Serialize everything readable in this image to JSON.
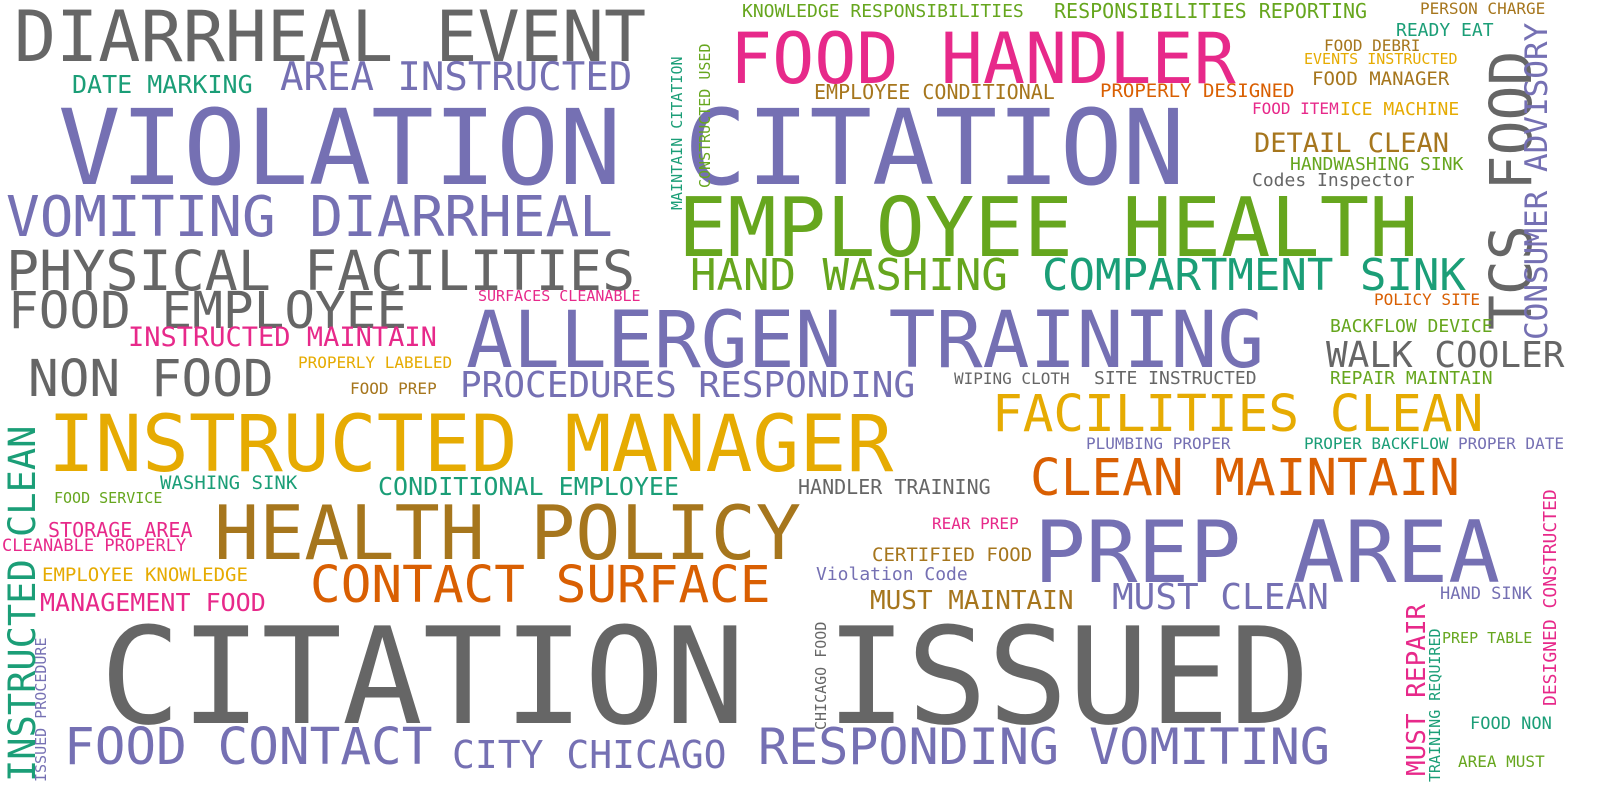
{
  "palette": {
    "gray": "#666666",
    "purple": "#7570b3",
    "pink": "#e7298a",
    "green": "#66a61e",
    "teal": "#1b9e77",
    "orange": "#d95f02",
    "gold": "#e6ab02",
    "brown": "#a6761d"
  },
  "words": [
    "DIARRHEAL EVENT",
    "VIOLATION CITATION",
    "CITATION ISSUED",
    "FOOD HANDLER",
    "EMPLOYEE HEALTH",
    "ALLERGEN TRAINING",
    "INSTRUCTED MANAGER",
    "PREP AREA",
    "HEALTH POLICY",
    "VOMITING DIARRHEAL",
    "PHYSICAL FACILITIES",
    "FOOD EMPLOYEE",
    "NON FOOD",
    "FOOD CONTACT",
    "RESPONDING VOMITING",
    "CONTACT SURFACE",
    "CLEAN MAINTAIN",
    "FACILITIES CLEAN",
    "COMPARTMENT SINK",
    "HAND WASHING",
    "AREA INSTRUCTED",
    "PROCEDURES RESPONDING",
    "CITY CHICAGO",
    "TCS FOOD",
    "WALK COOLER",
    "MUST CLEAN",
    "INSTRUCTED MAINTAIN",
    "DATE MARKING",
    "CONDITIONAL EMPLOYEE",
    "MANAGEMENT FOOD",
    "DETAIL CLEAN",
    "MUST MAINTAIN",
    "INSTRUCTED CLEAN",
    "KNOWLEDGE RESPONSIBILITIES",
    "RESPONSIBILITIES REPORTING",
    "EMPLOYEE CONDITIONAL",
    "PROPERLY DESIGNED",
    "HANDLER TRAINING",
    "STORAGE AREA",
    "CONSUMER ADVISORY",
    "MUST REPAIR",
    "FOOD MANAGER",
    "CERTIFIED FOOD",
    "EMPLOYEE KNOWLEDGE",
    "CLEANABLE PROPERLY",
    "WASHING SINK",
    "Violation Code",
    "Codes Inspector",
    "HANDWASHING SINK",
    "BACKFLOW DEVICE",
    "REPAIR MAINTAIN",
    "SITE INSTRUCTED",
    "WIPING CLOTH",
    "PERSON CHARGE",
    "READY EAT",
    "FOOD DEBRI",
    "EVENTS INSTRUCTED",
    "FOOD ITEM",
    "ICE MACHINE",
    "POLICY SITE",
    "PLUMBING PROPER",
    "PROPER BACKFLOW",
    "PROPER DATE",
    "HAND SINK",
    "PREP TABLE",
    "FOOD NON",
    "AREA MUST",
    "REAR PREP",
    "SURFACES CLEANABLE",
    "PROPERLY LABELED",
    "FOOD PREP",
    "FOOD SERVICE",
    "MAINTAIN CITATION",
    "CONSTRUCTED USED",
    "CHICAGO FOOD",
    "DESIGNED CONSTRUCTED",
    "TRAINING REQUIRED",
    "ISSUED PROCEDURE"
  ]
}
